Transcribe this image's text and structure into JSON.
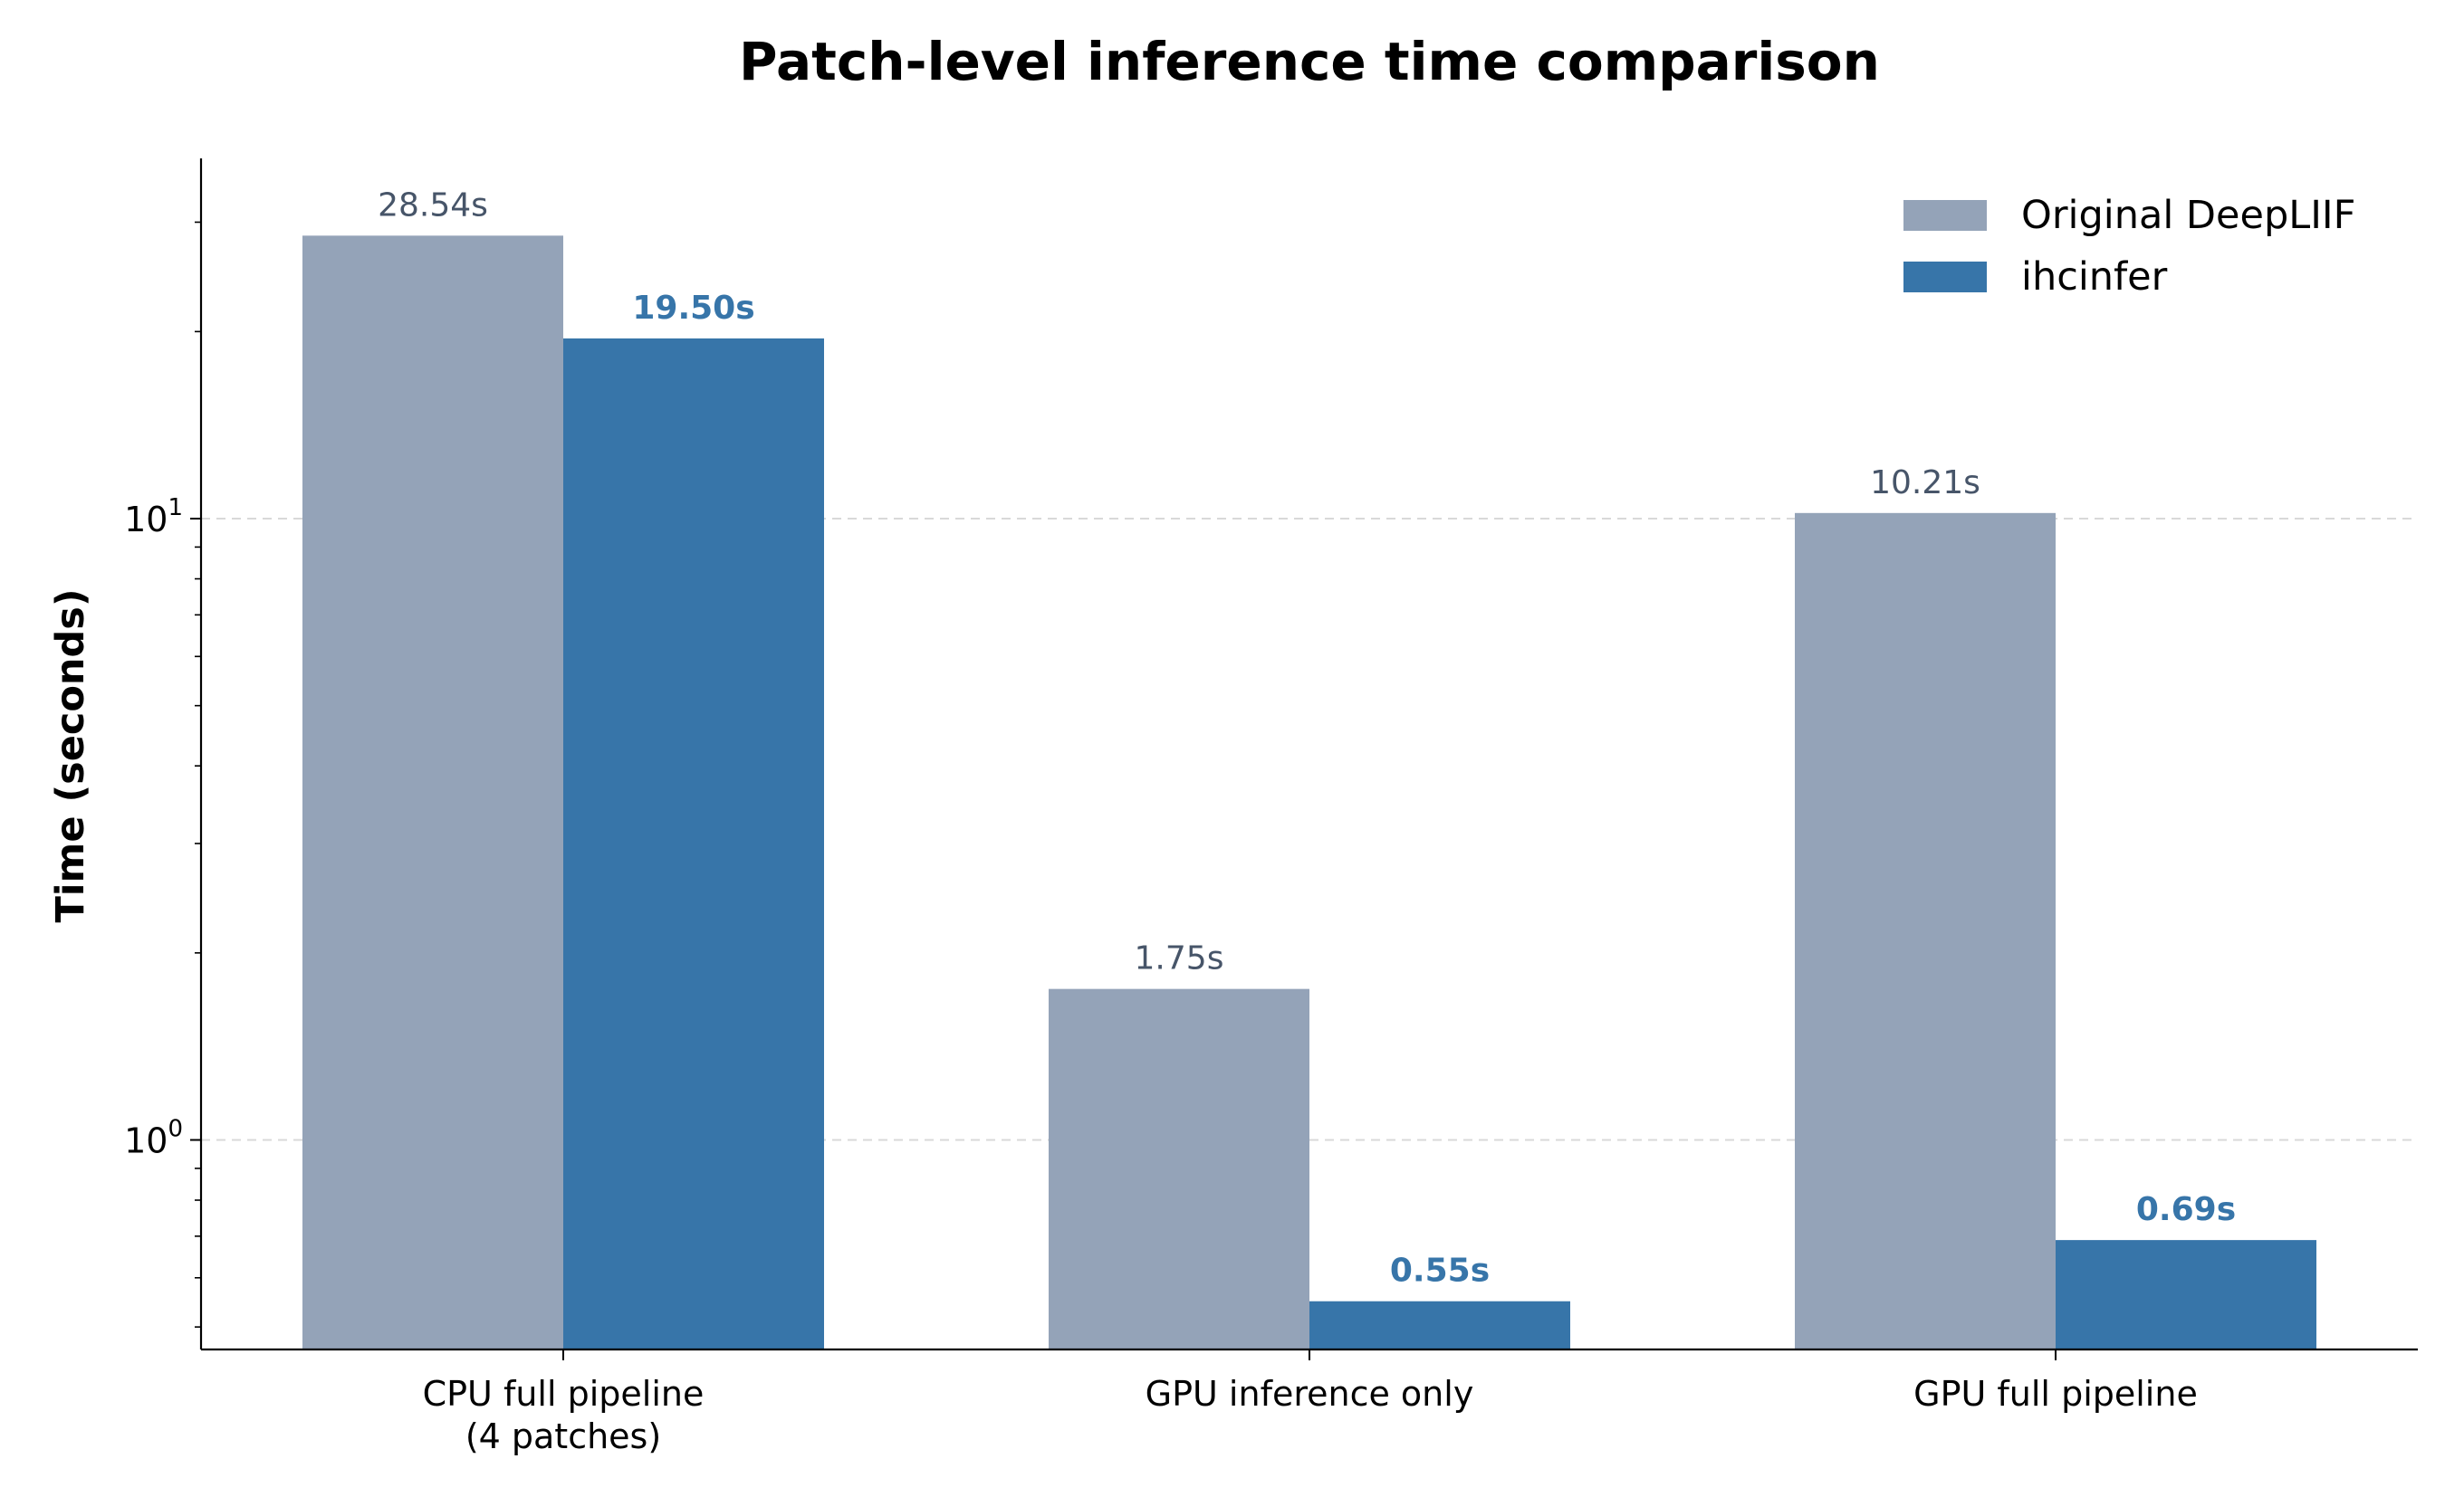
{
  "chart_data": {
    "type": "bar",
    "title": "Patch-level inference time comparison",
    "xlabel": "",
    "ylabel": "Time (seconds)",
    "yscale": "log",
    "ylim": [
      0.46,
      38
    ],
    "grid": "horizontal-dashed",
    "legend_position": "top-right",
    "categories": [
      "CPU full pipeline\n(4 patches)",
      "GPU inference only",
      "GPU full pipeline"
    ],
    "ytick_labels": [
      {
        "value": 1,
        "base": "10",
        "exp": "0"
      },
      {
        "value": 10,
        "base": "10",
        "exp": "1"
      }
    ],
    "series": [
      {
        "name": "Original DeepLIIF",
        "color": "#94a3b8",
        "label_color": "#475569",
        "label_bold": false,
        "values": [
          28.54,
          1.75,
          10.21
        ],
        "labels": [
          "28.54s",
          "1.75s",
          "10.21s"
        ]
      },
      {
        "name": "ihcinfer",
        "color": "#3775a9",
        "label_color": "#3775a9",
        "label_bold": true,
        "values": [
          19.5,
          0.55,
          0.69
        ],
        "labels": [
          "19.50s",
          "0.55s",
          "0.69s"
        ]
      }
    ]
  }
}
